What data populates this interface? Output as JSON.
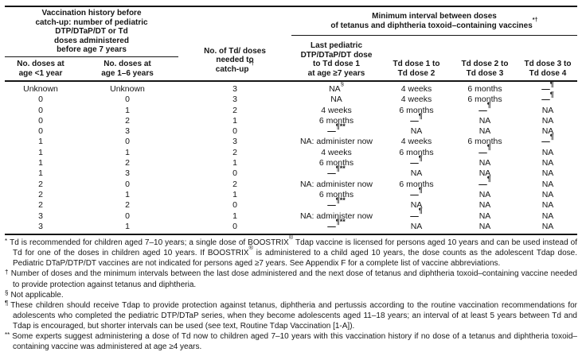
{
  "table": {
    "left_group_lines": [
      "Vaccination history before",
      "catch-up: number of pediatric",
      "DTP/DTaP/DT or Td",
      "doses administered",
      "before age 7 years"
    ],
    "right_group_lines": [
      "Minimum interval between doses",
      "of tetanus and diphtheria toxoid–containing vaccines^{*†}"
    ],
    "columns": [
      {
        "id": "doses-age-under-1",
        "lines": [
          "No. doses at",
          "age <1 year"
        ]
      },
      {
        "id": "doses-age-1-6",
        "lines": [
          "No. doses at",
          "age 1–6 years"
        ]
      },
      {
        "id": "td-doses-needed",
        "lines": [
          "No. of Td/ doses",
          "needed to",
          "catch-up^{*†}"
        ]
      },
      {
        "id": "last-pediatric-dose-to-td1",
        "lines": [
          "Last pediatric",
          "DTP/DTaP/DT dose",
          "to Td dose 1",
          "at age ≥7 years"
        ]
      },
      {
        "id": "td1-to-td2",
        "lines": [
          "Td dose 1 to",
          "Td dose 2"
        ]
      },
      {
        "id": "td2-to-td3",
        "lines": [
          "Td dose 2 to",
          "Td dose 3"
        ]
      },
      {
        "id": "td3-to-td4",
        "lines": [
          "Td dose 3 to",
          "Td dose 4"
        ]
      }
    ],
    "rows": [
      [
        "Unknown",
        "Unknown",
        "3",
        "NA^{§}",
        "4 weeks",
        "6 months",
        "—^{¶}"
      ],
      [
        "0",
        "0",
        "3",
        "NA",
        "4 weeks",
        "6 months",
        "—^{¶}"
      ],
      [
        "0",
        "1",
        "2",
        "4 weeks",
        "6 months",
        "—^{¶}",
        "NA"
      ],
      [
        "0",
        "2",
        "1",
        "6 months",
        "—^{¶}",
        "NA",
        "NA"
      ],
      [
        "0",
        "3",
        "0",
        "—^{¶**}",
        "NA",
        "NA",
        "NA"
      ],
      [
        "1",
        "0",
        "3",
        "NA: administer now",
        "4 weeks",
        "6 months",
        "—^{¶}"
      ],
      [
        "1",
        "1",
        "2",
        "4 weeks",
        "6 months",
        "—^{¶}",
        "NA"
      ],
      [
        "1",
        "2",
        "1",
        "6 months",
        "—^{¶}",
        "NA",
        "NA"
      ],
      [
        "1",
        "3",
        "0",
        "—^{¶**}",
        "NA",
        "NA",
        "NA"
      ],
      [
        "2",
        "0",
        "2",
        "NA: administer now",
        "6 months",
        "—^{¶}",
        "NA"
      ],
      [
        "2",
        "1",
        "1",
        "6 months",
        "—^{¶}",
        "NA",
        "NA"
      ],
      [
        "2",
        "2",
        "0",
        "—^{¶**}",
        "NA",
        "NA",
        "NA"
      ],
      [
        "3",
        "0",
        "1",
        "NA: administer now",
        "—^{¶}",
        "NA",
        "NA"
      ],
      [
        "3",
        "1",
        "0",
        "—^{¶**}",
        "NA",
        "NA",
        "NA"
      ]
    ]
  },
  "footnotes": [
    {
      "symbol": "*",
      "text": "Td is recommended for children aged 7–10 years; a single dose of BOOSTRIX^{®} Tdap vaccine is licensed for persons aged 10 years and can be used instead of Td for one of the doses in children aged 10 years. If BOOSTRIX^{®} is administered to a child aged 10 years, the dose counts as the adolescent Tdap dose. Pediatric DTaP/DTP/DT vaccines are not indicated for persons aged ≥7 years. See Appendix F for a complete list of vaccine abbreviations."
    },
    {
      "symbol": "†",
      "text": "Number of doses and the minimum intervals between the last dose administered and the next dose of tetanus and diphtheria toxoid–containing vaccine needed to provide protection against tetanus and diphtheria."
    },
    {
      "symbol": "§",
      "text": "Not applicable."
    },
    {
      "symbol": "¶",
      "text": "These children should receive Tdap to provide protection against tetanus, diphtheria and pertussis according to the routine vaccination recommendations for adolescents who completed the pediatric DTP/DTaP series, when they become adolescents aged 11–18 years; an interval of at least 5 years between Td and Tdap is encouraged, but shorter intervals can be used (see text, Routine Tdap Vaccination [1-A])."
    },
    {
      "symbol": "**",
      "text": "Some experts suggest administering a dose of Td now to children aged 7–10 years with this vaccination history if no dose of a tetanus and diphtheria toxoid–containing vaccine was administered at age ≥4 years."
    }
  ],
  "colors": {
    "text": "#161616",
    "rule": "#161616",
    "background": "#ffffff"
  }
}
